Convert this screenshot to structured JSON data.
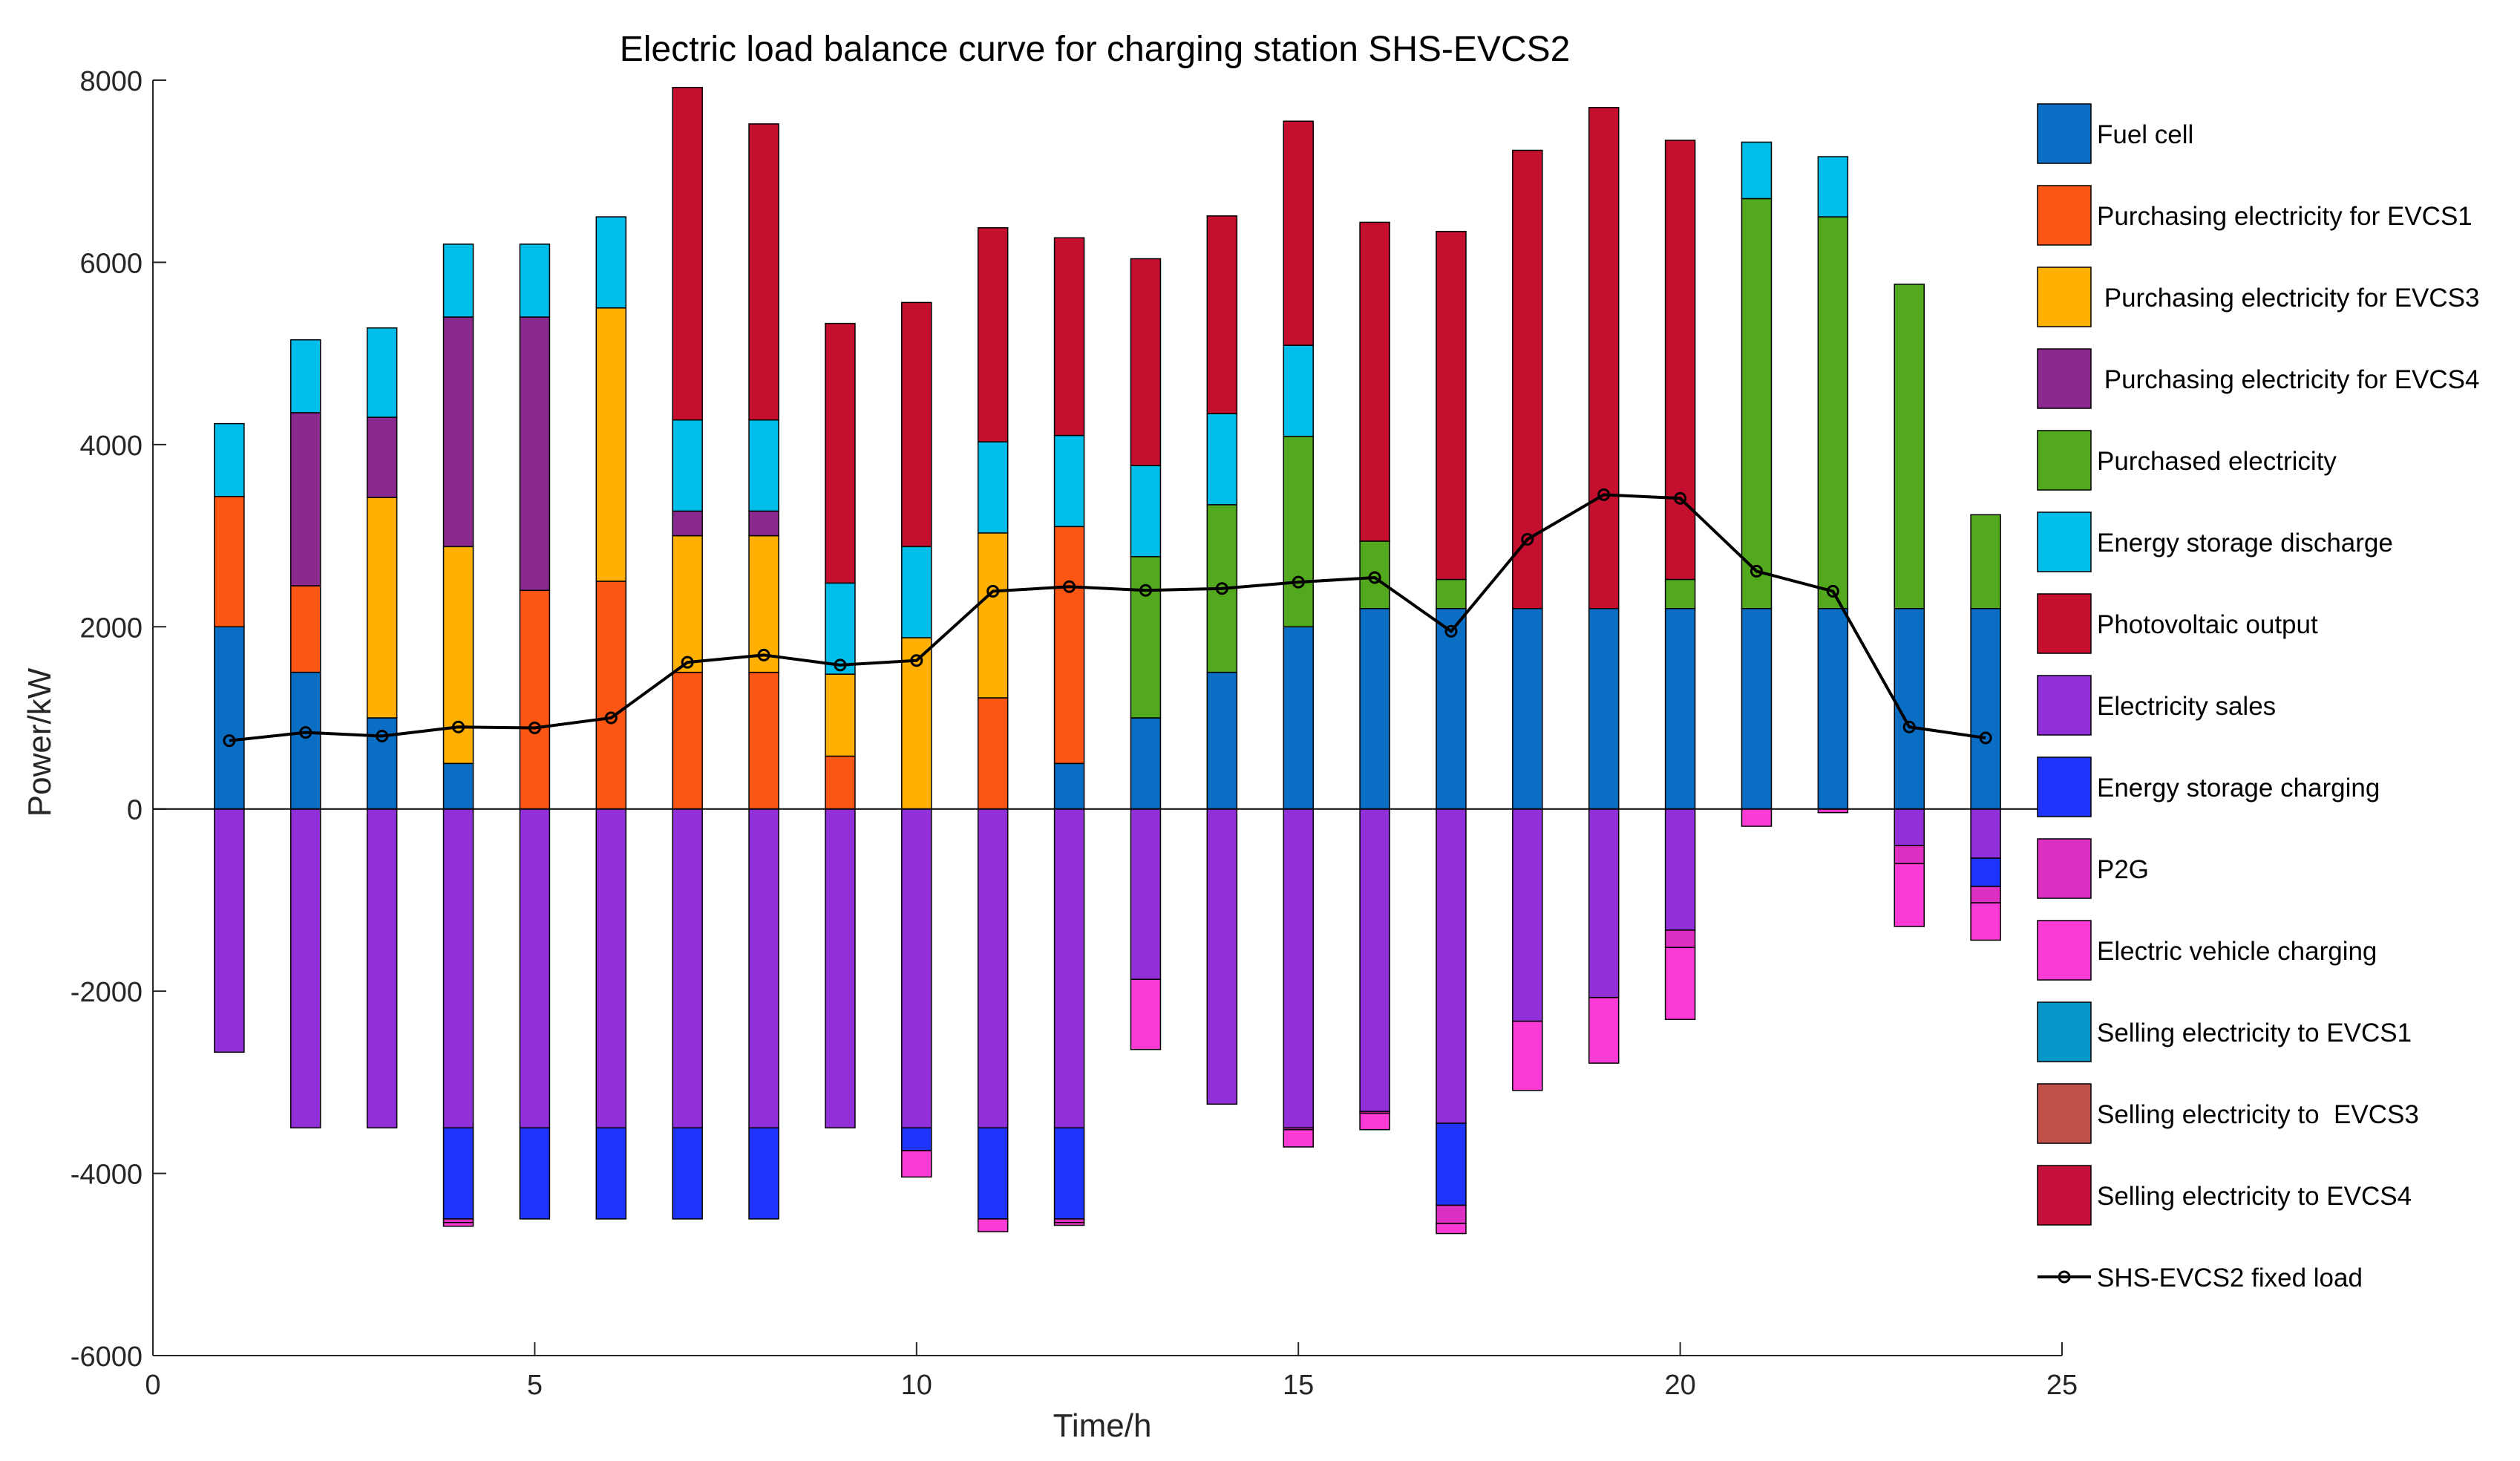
{
  "chart_data": {
    "type": "bar",
    "stacked": true,
    "title": "Electric load balance curve for charging station SHS-EVCS2",
    "xlabel": "Time/h",
    "ylabel": "Power/kW",
    "xlim": [
      0,
      25
    ],
    "ylim": [
      -6000,
      8000
    ],
    "xticks": [
      0,
      5,
      10,
      15,
      20,
      25
    ],
    "yticks": [
      -6000,
      -4000,
      -2000,
      0,
      2000,
      4000,
      6000,
      8000
    ],
    "x": [
      1,
      2,
      3,
      4,
      5,
      6,
      7,
      8,
      9,
      10,
      11,
      12,
      13,
      14,
      15,
      16,
      17,
      18,
      19,
      20,
      21,
      22,
      23,
      24
    ],
    "legend_position": "right",
    "series": [
      {
        "name": "Fuel cell",
        "color": "#0a6ec4",
        "sign": "positive",
        "values": [
          2000,
          1500,
          1000,
          500,
          0,
          0,
          0,
          0,
          0,
          0,
          0,
          500,
          1000,
          1500,
          2000,
          2200,
          2200,
          2200,
          2200,
          2200,
          2200,
          2200,
          2200,
          2200
        ]
      },
      {
        "name": "Purchasing electricity for EVCS1",
        "color": "#fb5613",
        "sign": "positive",
        "values": [
          1430,
          950,
          0,
          0,
          2400,
          2500,
          1500,
          1500,
          580,
          0,
          1220,
          2600,
          0,
          0,
          0,
          0,
          0,
          0,
          0,
          0,
          0,
          0,
          0,
          0
        ]
      },
      {
        "name": " Purchasing electricity for EVCS3",
        "color": "#ffb003",
        "sign": "positive",
        "values": [
          0,
          0,
          2420,
          2380,
          0,
          3000,
          1500,
          1500,
          900,
          1880,
          1810,
          0,
          0,
          0,
          0,
          0,
          0,
          0,
          0,
          0,
          0,
          0,
          0,
          0
        ]
      },
      {
        "name": " Purchasing electricity for EVCS4",
        "color": "#8b2a8e",
        "sign": "positive",
        "values": [
          0,
          1900,
          880,
          2520,
          3000,
          0,
          270,
          270,
          0,
          0,
          0,
          0,
          0,
          0,
          0,
          0,
          0,
          0,
          0,
          0,
          0,
          0,
          0,
          0
        ]
      },
      {
        "name": "Purchased electricity",
        "color": "#53a91e",
        "sign": "positive",
        "values": [
          0,
          0,
          0,
          0,
          0,
          0,
          0,
          0,
          0,
          0,
          0,
          0,
          1770,
          1840,
          2090,
          740,
          320,
          0,
          0,
          320,
          4500,
          4300,
          3560,
          1030
        ]
      },
      {
        "name": "Energy storage discharge",
        "color": "#00bde9",
        "sign": "positive",
        "values": [
          800,
          800,
          980,
          800,
          800,
          1000,
          1000,
          1000,
          1000,
          1000,
          1000,
          1000,
          1000,
          1000,
          1000,
          0,
          0,
          0,
          0,
          0,
          620,
          660,
          0,
          0
        ]
      },
      {
        "name": "Photovoltaic output",
        "color": "#c40f2f",
        "sign": "positive",
        "values": [
          0,
          0,
          0,
          0,
          0,
          0,
          3650,
          3250,
          2850,
          2680,
          2350,
          2170,
          2270,
          2170,
          2460,
          3500,
          3820,
          5030,
          5500,
          4820,
          0,
          0,
          0,
          0
        ]
      },
      {
        "name": "Electricity sales",
        "color": "#9130d8",
        "sign": "negative",
        "values": [
          -2670,
          -3500,
          -3500,
          -3500,
          -3500,
          -3500,
          -3500,
          -3500,
          -3500,
          -3500,
          -3500,
          -3500,
          -1870,
          -3240,
          -3500,
          -3320,
          -3450,
          -2330,
          -2070,
          -1330,
          0,
          0,
          -400,
          -540
        ]
      },
      {
        "name": "Energy storage charging",
        "color": "#1e34fb",
        "sign": "negative",
        "values": [
          0,
          0,
          0,
          -1000,
          -1000,
          -1000,
          -1000,
          -1000,
          0,
          -250,
          -1000,
          -1000,
          0,
          0,
          0,
          0,
          -900,
          0,
          0,
          0,
          0,
          0,
          0,
          -310
        ]
      },
      {
        "name": "P2G",
        "color": "#dd2fc1",
        "sign": "negative",
        "values": [
          0,
          0,
          0,
          -40,
          0,
          0,
          0,
          0,
          0,
          0,
          0,
          -40,
          0,
          0,
          -20,
          -20,
          -200,
          0,
          0,
          -190,
          0,
          0,
          -200,
          -180
        ]
      },
      {
        "name": "Electric vehicle charging",
        "color": "#fc3ad6",
        "sign": "negative",
        "values": [
          0,
          0,
          0,
          -40,
          0,
          0,
          0,
          0,
          0,
          -290,
          -140,
          -30,
          -770,
          0,
          -190,
          -180,
          -110,
          -760,
          -720,
          -790,
          -190,
          -40,
          -690,
          -410
        ]
      },
      {
        "name": "Selling electricity to EVCS1",
        "color": "#0797c8",
        "sign": "negative",
        "values": [
          0,
          0,
          0,
          0,
          0,
          0,
          0,
          0,
          0,
          0,
          0,
          0,
          0,
          0,
          0,
          0,
          0,
          0,
          0,
          0,
          0,
          0,
          0,
          0
        ]
      },
      {
        "name": "Selling electricity to  EVCS3",
        "color": "#c1504a",
        "sign": "negative",
        "values": [
          0,
          0,
          0,
          0,
          0,
          0,
          0,
          0,
          0,
          0,
          0,
          0,
          0,
          0,
          0,
          0,
          0,
          0,
          0,
          0,
          0,
          0,
          0,
          0
        ]
      },
      {
        "name": "Selling electricity to EVCS4",
        "color": "#c4103a",
        "sign": "negative",
        "values": [
          0,
          0,
          0,
          0,
          0,
          0,
          0,
          0,
          0,
          0,
          0,
          0,
          0,
          0,
          0,
          0,
          0,
          0,
          0,
          0,
          0,
          0,
          0,
          0
        ]
      }
    ],
    "line_series": {
      "name": "SHS-EVCS2 fixed load",
      "color": "#000000",
      "values": [
        750,
        840,
        800,
        900,
        890,
        1000,
        1610,
        1690,
        1580,
        1630,
        2390,
        2440,
        2400,
        2420,
        2490,
        2540,
        1950,
        2960,
        3450,
        3410,
        2610,
        2390,
        900,
        780
      ]
    }
  }
}
